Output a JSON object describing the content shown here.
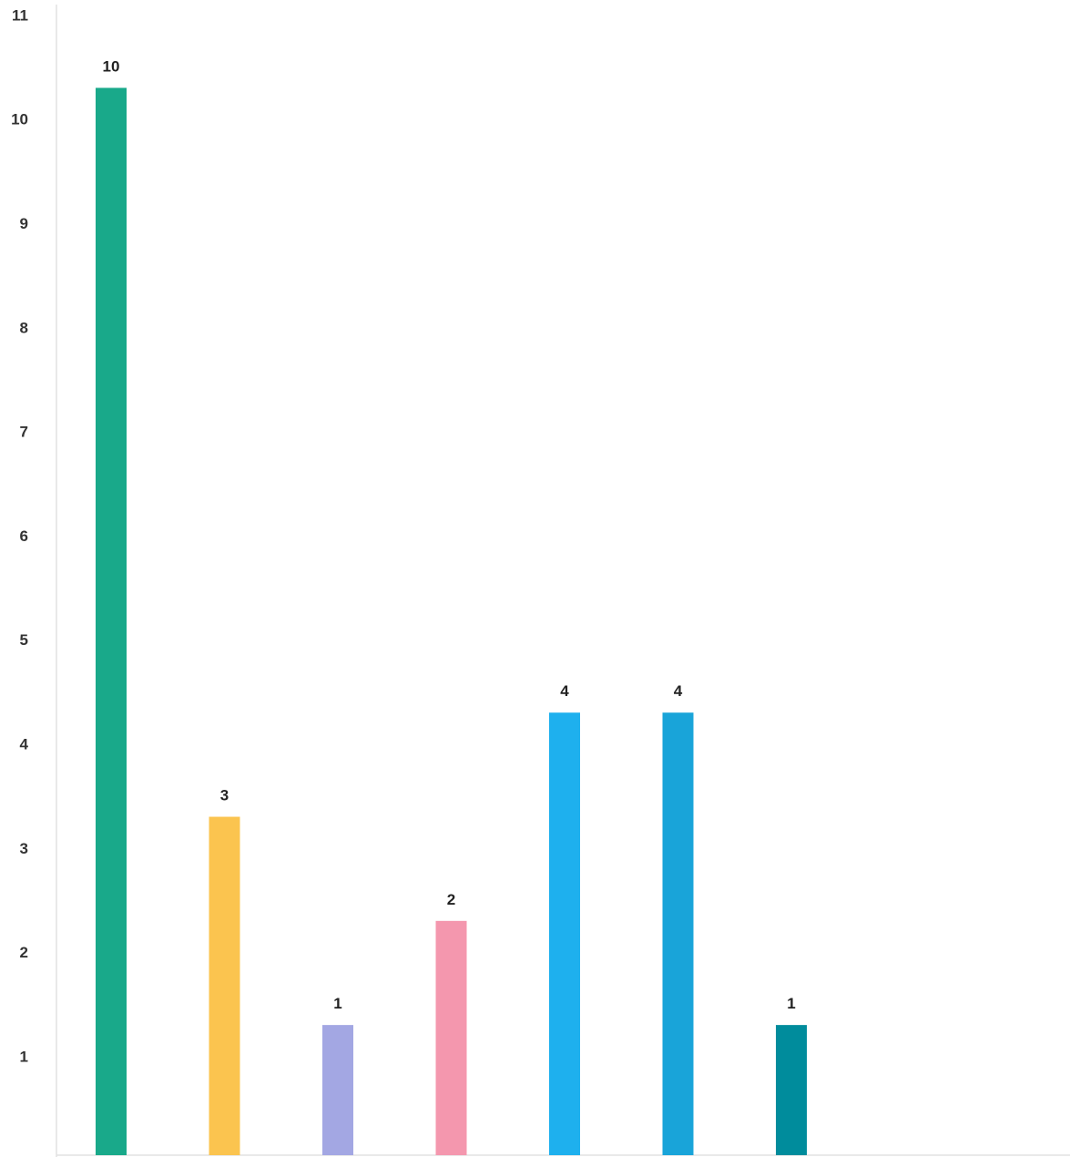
{
  "chart_data": {
    "type": "bar",
    "title": "",
    "xlabel": "",
    "ylabel": "",
    "ylim": [
      0.05,
      11.1
    ],
    "yticks": [
      1,
      2,
      3,
      4,
      5,
      6,
      7,
      8,
      9,
      10,
      11
    ],
    "grid": false,
    "values": [
      10,
      3,
      1,
      2,
      4,
      4,
      1
    ],
    "data_labels": [
      "10",
      "3",
      "1",
      "2",
      "4",
      "4",
      "1"
    ],
    "colors": [
      "#19a98a",
      "#fbc44f",
      "#a3a7e3",
      "#f497ae",
      "#1eb0ee",
      "#19a4d9",
      "#008c9c"
    ]
  }
}
